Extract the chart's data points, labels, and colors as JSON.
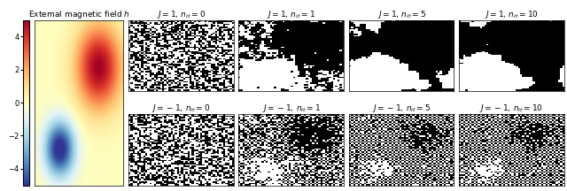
{
  "title_heatmap": "External magnetic field $h$",
  "colorbar_ticks": [
    -4,
    -2,
    0,
    2,
    4
  ],
  "subplot_titles_row1": [
    "$J=1,\\, n_{it}=0$",
    "$J=1,\\, n_{it}=1$",
    "$J=1,\\, n_{it}=5$",
    "$J=1,\\, n_{it}=10$"
  ],
  "subplot_titles_row2": [
    "$J=-1,\\, n_{it}=0$",
    "$J=-1,\\, n_{it}=1$",
    "$J=-1,\\, n_{it}=5$",
    "$J=-1,\\, n_{it}=10$"
  ],
  "fig_width": 6.4,
  "fig_height": 2.16,
  "heatmap_vmin": -5,
  "heatmap_vmax": 5,
  "colorbar_fontsize": 6,
  "title_fontsize": 6.5,
  "grid_size": 50,
  "J1_beta": 0.8,
  "Jm1_beta": 0.6
}
